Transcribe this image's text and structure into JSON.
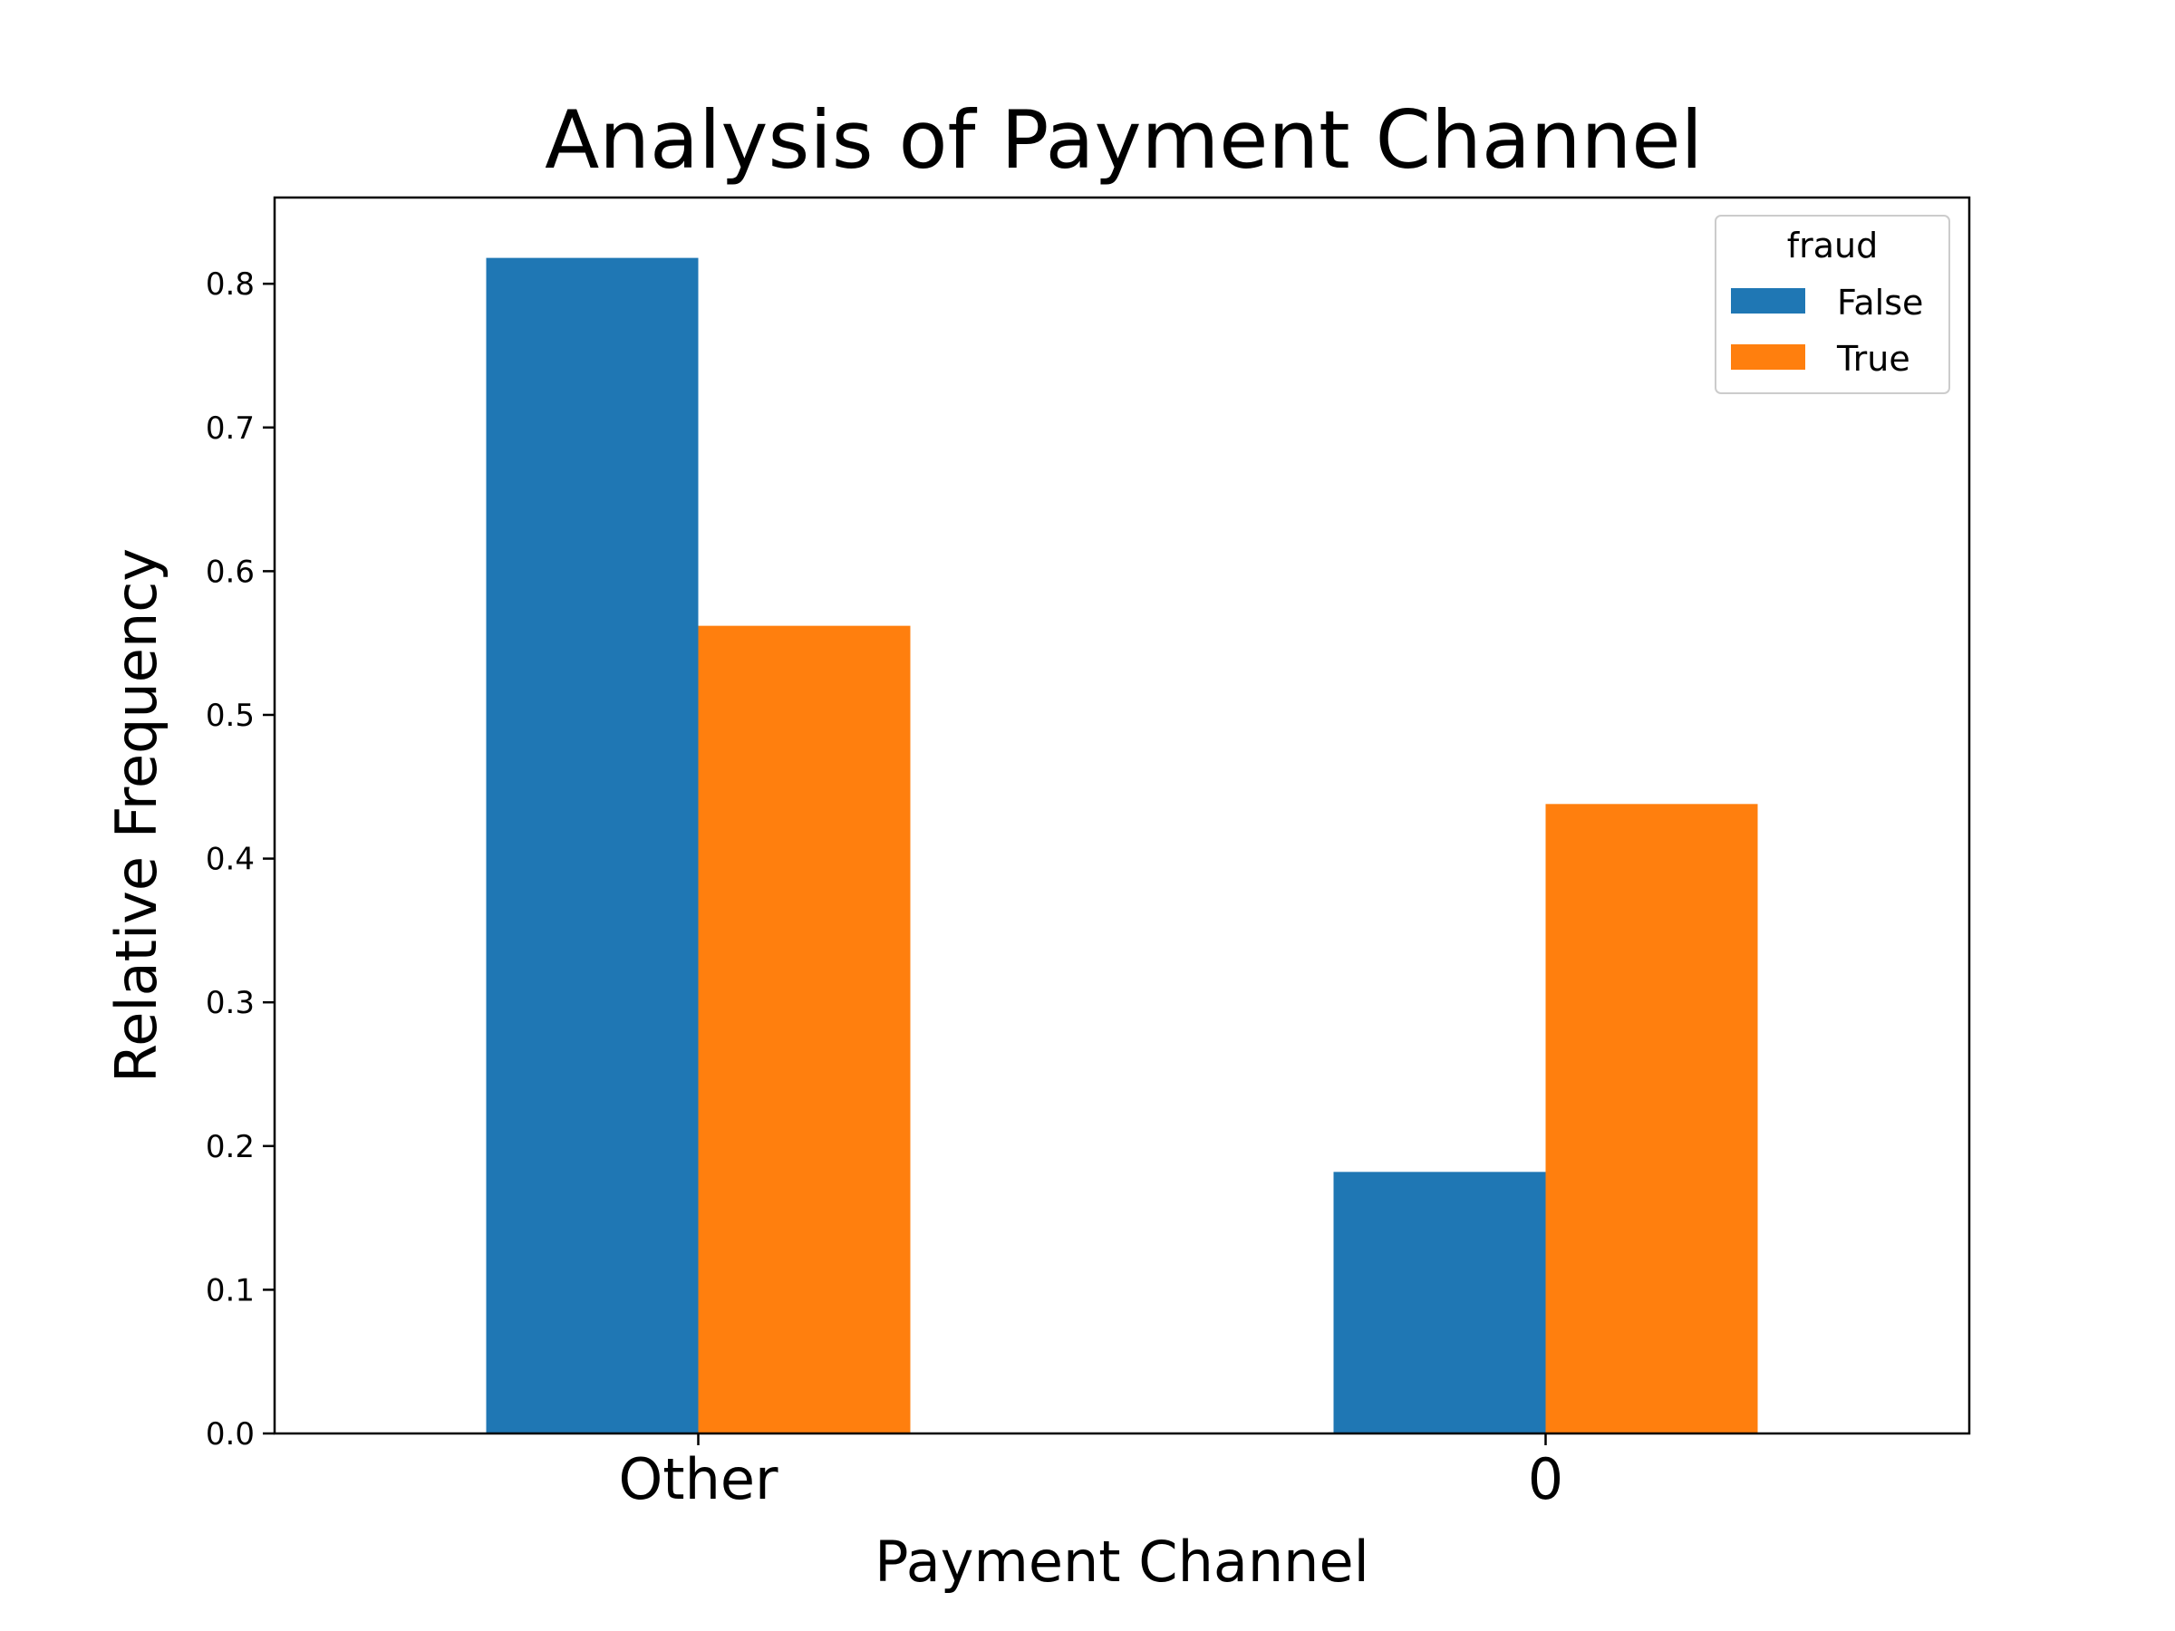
{
  "chart_data": {
    "type": "bar",
    "title": "Analysis of Payment Channel",
    "xlabel": "Payment Channel",
    "ylabel": "Relative Frequency",
    "categories": [
      "Other",
      "0"
    ],
    "series": [
      {
        "name": "False",
        "values": [
          0.818,
          0.182
        ],
        "color": "#1f77b4"
      },
      {
        "name": "True",
        "values": [
          0.562,
          0.438
        ],
        "color": "#ff7f0e"
      }
    ],
    "ylim": [
      0,
      0.86
    ],
    "yticks": [
      0.0,
      0.1,
      0.2,
      0.3,
      0.4,
      0.5,
      0.6,
      0.7,
      0.8
    ],
    "ytick_labels": [
      "0.0",
      "0.1",
      "0.2",
      "0.3",
      "0.4",
      "0.5",
      "0.6",
      "0.7",
      "0.8"
    ],
    "legend": {
      "title": "fraud",
      "position": "top-right"
    },
    "grid": false
  }
}
